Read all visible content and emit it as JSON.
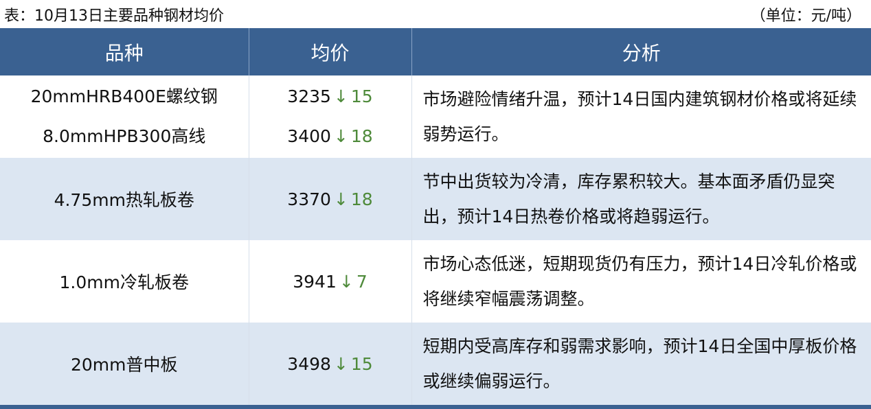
{
  "caption": "表：10月13日主要品种钢材均价",
  "unit": "（单位：元/吨）",
  "columns": [
    "品种",
    "均价",
    "分析"
  ],
  "colors": {
    "header_bg": "#3a6191",
    "alt_row_bg": "#dce6f2",
    "down": "#4e8a3a"
  },
  "rows": [
    {
      "items": [
        {
          "name": "20mmHRB400E螺纹钢",
          "price": "3235",
          "arrow": "↓",
          "change": "15"
        },
        {
          "name": "8.0mmHPB300高线",
          "price": "3400",
          "arrow": "↓",
          "change": "18"
        }
      ],
      "analysis": "市场避险情绪升温，预计14日国内建筑钢材价格或将延续弱势运行。"
    },
    {
      "items": [
        {
          "name": "4.75mm热轧板卷",
          "price": "3370",
          "arrow": "↓",
          "change": "18"
        }
      ],
      "analysis": "节中出货较为冷清，库存累积较大。基本面矛盾仍显突出，预计14日热卷价格或将趋弱运行。"
    },
    {
      "items": [
        {
          "name": "1.0mm冷轧板卷",
          "price": "3941",
          "arrow": "↓",
          "change": "7"
        }
      ],
      "analysis": "市场心态低迷，短期现货仍有压力，预计14日冷轧价格或将继续窄幅震荡调整。"
    },
    {
      "items": [
        {
          "name": "20mm普中板",
          "price": "3498",
          "arrow": "↓",
          "change": "15"
        }
      ],
      "analysis": "短期内受高库存和弱需求影响，预计14日全国中厚板价格或继续偏弱运行。"
    }
  ]
}
